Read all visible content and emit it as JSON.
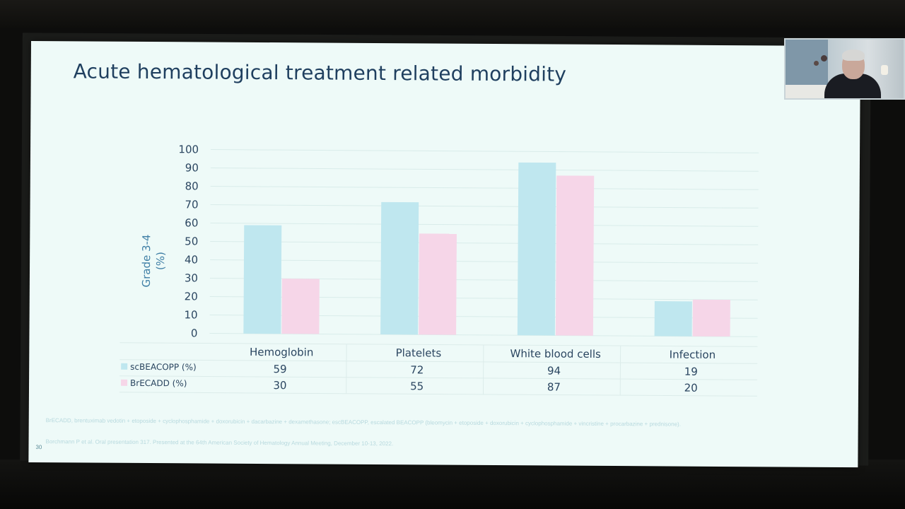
{
  "slide": {
    "title": "Acute hematological treatment related morbidity",
    "page_number": "30",
    "footnote_abbreviations": "BrECADD, brentuximab vedotin + etoposide + cyclophosphamide + doxorubicin + dacarbazine + dexamethasone; escBEACOPP, escalated BEACOPP (bleomycin + etoposide + doxorubicin + cyclophosphamide + vincristine + procarbazine + prednisone).",
    "footnote_reference": "Borchmann P et al. Oral presentation 317. Presented at the 64th American Society of Hematology Annual Meeting, December 10-13, 2022."
  },
  "colors": {
    "scBEACOPP": "#bfe7ef",
    "BrECADD": "#f6d6e8",
    "axis_text": "#2a4560",
    "ylabel_text": "#3f7fa6"
  },
  "chart_data": {
    "type": "bar",
    "categories": [
      "Hemoglobin",
      "Platelets",
      "White blood cells",
      "Infection"
    ],
    "series": [
      {
        "name": "scBEACOPP (%)",
        "values": [
          59,
          72,
          94,
          19
        ]
      },
      {
        "name": "BrECADD (%)",
        "values": [
          30,
          55,
          87,
          20
        ]
      }
    ],
    "ylabel": "Grade 3-4\n(%)",
    "ylim": [
      0,
      100
    ],
    "yticks": [
      0,
      10,
      20,
      30,
      40,
      50,
      60,
      70,
      80,
      90,
      100
    ],
    "grid": true,
    "data_table": true
  }
}
